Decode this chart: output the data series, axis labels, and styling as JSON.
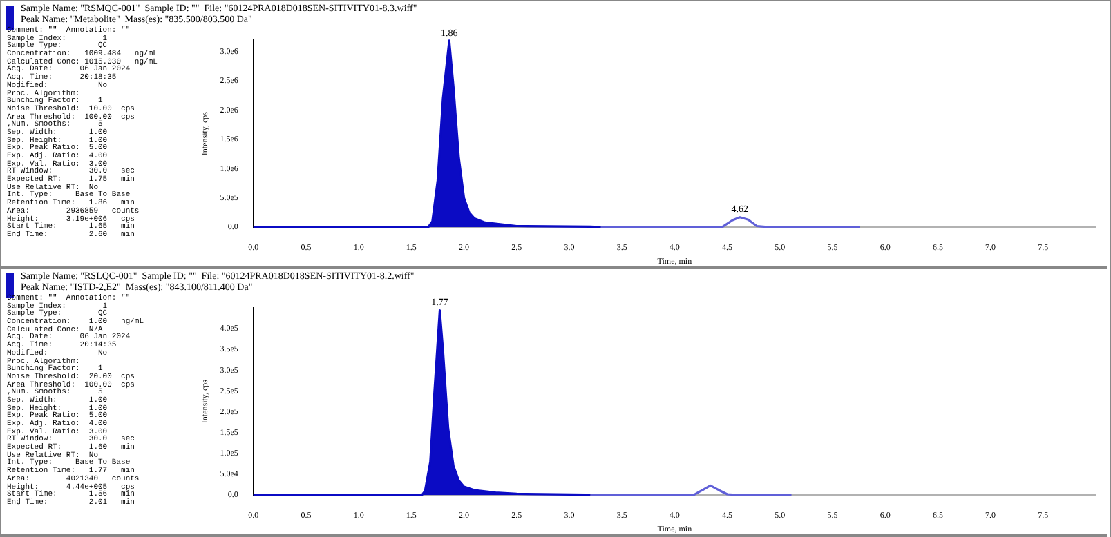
{
  "chart_data": [
    {
      "type": "line",
      "title": "Sample Name: \"RSMQC-001\"  Sample ID: \"\"  File: \"60124PRA018D018SEN-SITIVITY01-8.3.wiff\"",
      "subtitle": "Peak Name: \"Metabolite\"  Mass(es): \"835.500/803.500 Da\"",
      "xlabel": "Time, min",
      "ylabel": "Intensity, cps",
      "grid": false,
      "legend": false,
      "marker": "none",
      "xlim": [
        0,
        8
      ],
      "ylim": [
        0,
        3200000
      ],
      "xticks": [
        {
          "value": 0,
          "label": "0.0"
        },
        0.5,
        {
          "value": 1,
          "label": "1.0"
        },
        1.5,
        {
          "value": 2,
          "label": "2.0"
        },
        2.5,
        {
          "value": 3,
          "label": "3.0"
        },
        3.5,
        {
          "value": 4,
          "label": "4.0"
        },
        4.5,
        {
          "value": 5,
          "label": "5.0"
        },
        5.5,
        {
          "value": 6,
          "label": "6.0"
        },
        6.5,
        {
          "value": 7,
          "label": "7.0"
        },
        7.5
      ],
      "yticks": [
        {
          "value": 0,
          "label": "0.0"
        },
        {
          "value": 500000,
          "label": "5.0e5"
        },
        {
          "value": 1000000,
          "label": "1.0e6"
        },
        {
          "value": 1500000,
          "label": "1.5e6"
        },
        {
          "value": 2000000,
          "label": "2.0e6"
        },
        {
          "value": 2500000,
          "label": "2.5e6"
        },
        {
          "value": 3000000,
          "label": "3.0e6"
        }
      ],
      "series": [
        {
          "type": "area",
          "color": "#0b0bc4",
          "x": [
            0,
            1.66,
            1.7,
            1.75,
            1.8,
            1.86,
            1.9,
            1.95,
            2.0,
            2.05,
            2.1,
            2.2,
            2.4,
            2.5,
            3.2,
            3.3
          ],
          "values": [
            0,
            0,
            100000,
            800000,
            2200000,
            3190000,
            2400000,
            1200000,
            500000,
            250000,
            150000,
            80000,
            40000,
            20000,
            10000,
            0
          ]
        },
        {
          "type": "line",
          "color": "#6060d8",
          "x": [
            3.3,
            4.45,
            4.55,
            4.62,
            4.7,
            4.78,
            4.9,
            5.76
          ],
          "values": [
            0,
            0,
            120000,
            170000,
            130000,
            20000,
            0,
            0
          ]
        }
      ],
      "annotations": [
        "Comment: \"\"  Annotation: \"\"",
        "Sample Index:        1",
        "Sample Type:        QC",
        "Concentration:   1009.484   ng/mL",
        "Calculated Conc: 1015.030   ng/mL",
        "Acq. Date:      06 Jan 2024",
        "Acq. Time:      20:18:35",
        "Modified:           No",
        "Proc. Algorithm:",
        "Bunching Factor:    1",
        "Noise Threshold:  10.00  cps",
        "Area Threshold:  100.00  cps",
        ",Num. Smooths:      5",
        "Sep. Width:       1.00",
        "Sep. Height:      1.00",
        "Exp. Peak Ratio:  5.00",
        "Exp. Adj. Ratio:  4.00",
        "Exp. Val. Ratio:  3.00",
        "RT Window:        30.0   sec",
        "Expected RT:      1.75   min",
        "Use Relative RT:  No",
        "Int. Type:     Base To Base",
        "Retention Time:   1.86   min",
        "Area:        2936859   counts",
        "Height:      3.19e+006   cps",
        "Start Time:       1.65   min",
        "End Time:         2.60   min",
        {
          "text": "1.86",
          "x": 1.86,
          "y": 3190000
        },
        {
          "text": "4.62",
          "x": 4.62,
          "y": 170000
        }
      ]
    },
    {
      "type": "line",
      "title": "Sample Name: \"RSLQC-001\"  Sample ID: \"\"  File: \"60124PRA018D018SEN-SITIVITY01-8.2.wiff\"",
      "subtitle": "Peak Name: \"ISTD-2,E2\"  Mass(es): \"843.100/811.400 Da\"",
      "xlabel": "Time, min",
      "ylabel": "Intensity, cps",
      "grid": false,
      "legend": false,
      "marker": "none",
      "xlim": [
        0,
        8
      ],
      "ylim": [
        0,
        450000
      ],
      "xticks": [
        {
          "value": 0,
          "label": "0.0"
        },
        0.5,
        {
          "value": 1,
          "label": "1.0"
        },
        1.5,
        {
          "value": 2,
          "label": "2.0"
        },
        2.5,
        {
          "value": 3,
          "label": "3.0"
        },
        3.5,
        {
          "value": 4,
          "label": "4.0"
        },
        4.5,
        {
          "value": 5,
          "label": "5.0"
        },
        5.5,
        {
          "value": 6,
          "label": "6.0"
        },
        6.5,
        {
          "value": 7,
          "label": "7.0"
        },
        7.5
      ],
      "yticks": [
        {
          "value": 0,
          "label": "0.0"
        },
        {
          "value": 50000,
          "label": "5.0e4"
        },
        {
          "value": 100000,
          "label": "1.0e5"
        },
        {
          "value": 150000,
          "label": "1.5e5"
        },
        {
          "value": 200000,
          "label": "2.0e5"
        },
        {
          "value": 250000,
          "label": "2.5e5"
        },
        {
          "value": 300000,
          "label": "3.0e5"
        },
        {
          "value": 350000,
          "label": "3.5e5"
        },
        {
          "value": 400000,
          "label": "4.0e5"
        }
      ],
      "series": [
        {
          "type": "area",
          "color": "#0b0bc4",
          "x": [
            0,
            1.6,
            1.63,
            1.68,
            1.72,
            1.77,
            1.8,
            1.85,
            1.9,
            1.95,
            2.0,
            2.1,
            2.3,
            2.5,
            3.15,
            3.2
          ],
          "values": [
            0,
            0,
            10000,
            80000,
            250000,
            444000,
            350000,
            160000,
            70000,
            35000,
            20000,
            12000,
            6000,
            3000,
            1000,
            0
          ]
        },
        {
          "type": "line",
          "color": "#6060d8",
          "x": [
            3.2,
            4.18,
            4.25,
            4.34,
            4.42,
            4.5,
            4.6,
            5.11
          ],
          "values": [
            0,
            0,
            10000,
            23000,
            12000,
            2000,
            0,
            0
          ]
        }
      ],
      "annotations": [
        "Comment: \"\"  Annotation: \"\"",
        "Sample Index:        1",
        "Sample Type:        QC",
        "Concentration:    1.00   ng/mL",
        "Calculated Conc:  N/A",
        "Acq. Date:      06 Jan 2024",
        "Acq. Time:      20:14:35",
        "Modified:           No",
        "Proc. Algorithm:",
        "Bunching Factor:    1",
        "Noise Threshold:  20.00  cps",
        "Area Threshold:  100.00  cps",
        ",Num. Smooths:      5",
        "Sep. Width:       1.00",
        "Sep. Height:      1.00",
        "Exp. Peak Ratio:  5.00",
        "Exp. Adj. Ratio:  4.00",
        "Exp. Val. Ratio:  3.00",
        "RT Window:        30.0   sec",
        "Expected RT:      1.60   min",
        "Use Relative RT:  No",
        "Int. Type:     Base To Base",
        "Retention Time:   1.77   min",
        "Area:        4021340   counts",
        "Height:      4.44e+005   cps",
        "Start Time:       1.56   min",
        "End Time:         2.01   min",
        {
          "text": "1.77",
          "x": 1.77,
          "y": 444000
        }
      ]
    }
  ]
}
